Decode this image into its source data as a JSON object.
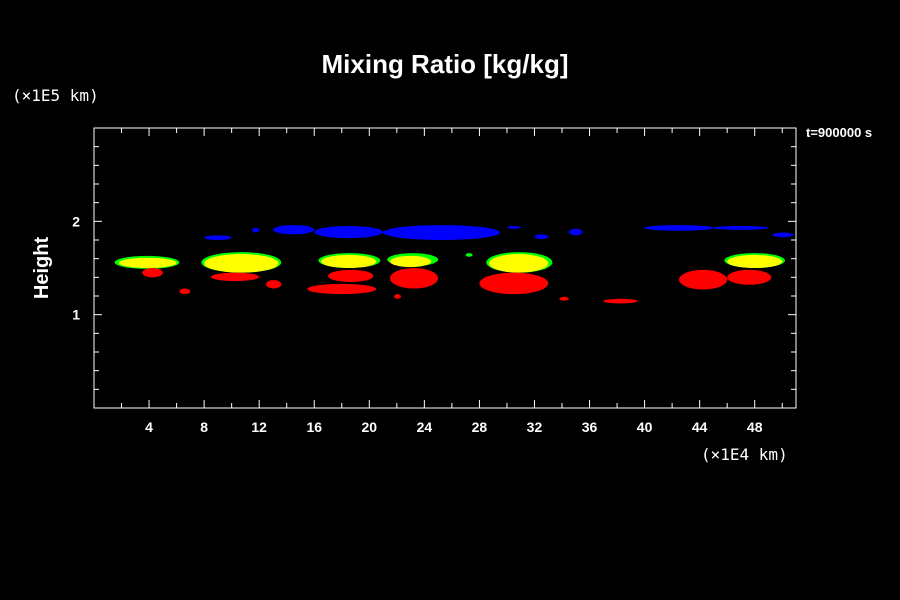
{
  "chart_data": {
    "type": "heatmap",
    "title": "Mixing Ratio [kg/kg]",
    "ylabel": "Height",
    "y_unit": "(×1E5 km)",
    "x_unit": "(×1E4 km)",
    "time_label": "t=900000 s",
    "xlim": [
      0,
      51
    ],
    "ylim": [
      0,
      3
    ],
    "x_ticks": [
      4,
      8,
      12,
      16,
      20,
      24,
      28,
      32,
      36,
      40,
      44,
      48
    ],
    "y_ticks": [
      1,
      2
    ],
    "grid": false,
    "colors": {
      "blue": "#0000ff",
      "green": "#00ff00",
      "yellow": "#ffff00",
      "red": "#ff0000"
    },
    "regions": [
      {
        "color": "blue",
        "x": [
          8.0,
          10.0
        ],
        "y": [
          1.8,
          1.85
        ]
      },
      {
        "color": "blue",
        "x": [
          11.5,
          12.0
        ],
        "y": [
          1.88,
          1.93
        ]
      },
      {
        "color": "blue",
        "x": [
          13.0,
          16.0
        ],
        "y": [
          1.86,
          1.96
        ]
      },
      {
        "color": "blue",
        "x": [
          16.0,
          21.0
        ],
        "y": [
          1.82,
          1.95
        ]
      },
      {
        "color": "blue",
        "x": [
          21.0,
          29.5
        ],
        "y": [
          1.8,
          1.96
        ]
      },
      {
        "color": "blue",
        "x": [
          30.0,
          31.0
        ],
        "y": [
          1.92,
          1.95
        ]
      },
      {
        "color": "blue",
        "x": [
          32.0,
          33.0
        ],
        "y": [
          1.81,
          1.86
        ]
      },
      {
        "color": "blue",
        "x": [
          34.5,
          35.5
        ],
        "y": [
          1.85,
          1.92
        ]
      },
      {
        "color": "blue",
        "x": [
          40.0,
          45.0
        ],
        "y": [
          1.9,
          1.96
        ]
      },
      {
        "color": "blue",
        "x": [
          45.0,
          49.0
        ],
        "y": [
          1.91,
          1.95
        ]
      },
      {
        "color": "blue",
        "x": [
          49.3,
          50.8
        ],
        "y": [
          1.83,
          1.88
        ]
      },
      {
        "color": "green",
        "x": [
          1.5,
          6.2
        ],
        "y": [
          1.49,
          1.63
        ]
      },
      {
        "color": "yellow",
        "x": [
          1.8,
          6.0
        ],
        "y": [
          1.5,
          1.61
        ]
      },
      {
        "color": "red",
        "x": [
          3.5,
          5.0
        ],
        "y": [
          1.4,
          1.5
        ]
      },
      {
        "color": "red",
        "x": [
          6.2,
          7.0
        ],
        "y": [
          1.22,
          1.28
        ]
      },
      {
        "color": "green",
        "x": [
          7.8,
          13.6
        ],
        "y": [
          1.45,
          1.67
        ]
      },
      {
        "color": "yellow",
        "x": [
          8.0,
          13.4
        ],
        "y": [
          1.45,
          1.65
        ]
      },
      {
        "color": "red",
        "x": [
          8.5,
          12.0
        ],
        "y": [
          1.36,
          1.45
        ]
      },
      {
        "color": "red",
        "x": [
          12.5,
          13.6
        ],
        "y": [
          1.28,
          1.37
        ]
      },
      {
        "color": "green",
        "x": [
          16.3,
          20.8
        ],
        "y": [
          1.5,
          1.66
        ]
      },
      {
        "color": "yellow",
        "x": [
          16.5,
          20.5
        ],
        "y": [
          1.5,
          1.64
        ]
      },
      {
        "color": "red",
        "x": [
          17.0,
          20.3
        ],
        "y": [
          1.35,
          1.48
        ]
      },
      {
        "color": "red",
        "x": [
          15.5,
          20.5
        ],
        "y": [
          1.22,
          1.33
        ]
      },
      {
        "color": "green",
        "x": [
          21.3,
          25.0
        ],
        "y": [
          1.52,
          1.66
        ]
      },
      {
        "color": "yellow",
        "x": [
          21.5,
          24.5
        ],
        "y": [
          1.51,
          1.63
        ]
      },
      {
        "color": "red",
        "x": [
          21.5,
          25.0
        ],
        "y": [
          1.28,
          1.5
        ]
      },
      {
        "color": "red",
        "x": [
          21.8,
          22.3
        ],
        "y": [
          1.17,
          1.22
        ]
      },
      {
        "color": "green",
        "x": [
          27.0,
          27.5
        ],
        "y": [
          1.62,
          1.66
        ]
      },
      {
        "color": "green",
        "x": [
          28.5,
          33.3
        ],
        "y": [
          1.45,
          1.67
        ]
      },
      {
        "color": "yellow",
        "x": [
          28.7,
          33.0
        ],
        "y": [
          1.45,
          1.65
        ]
      },
      {
        "color": "red",
        "x": [
          28.0,
          33.0
        ],
        "y": [
          1.22,
          1.45
        ]
      },
      {
        "color": "red",
        "x": [
          33.8,
          34.5
        ],
        "y": [
          1.15,
          1.19
        ]
      },
      {
        "color": "red",
        "x": [
          37.0,
          39.5
        ],
        "y": [
          1.12,
          1.17
        ]
      },
      {
        "color": "red",
        "x": [
          42.5,
          46.0
        ],
        "y": [
          1.27,
          1.48
        ]
      },
      {
        "color": "green",
        "x": [
          45.8,
          50.2
        ],
        "y": [
          1.5,
          1.66
        ]
      },
      {
        "color": "yellow",
        "x": [
          46.0,
          50.0
        ],
        "y": [
          1.5,
          1.64
        ]
      },
      {
        "color": "red",
        "x": [
          46.0,
          49.2
        ],
        "y": [
          1.32,
          1.48
        ]
      }
    ]
  }
}
